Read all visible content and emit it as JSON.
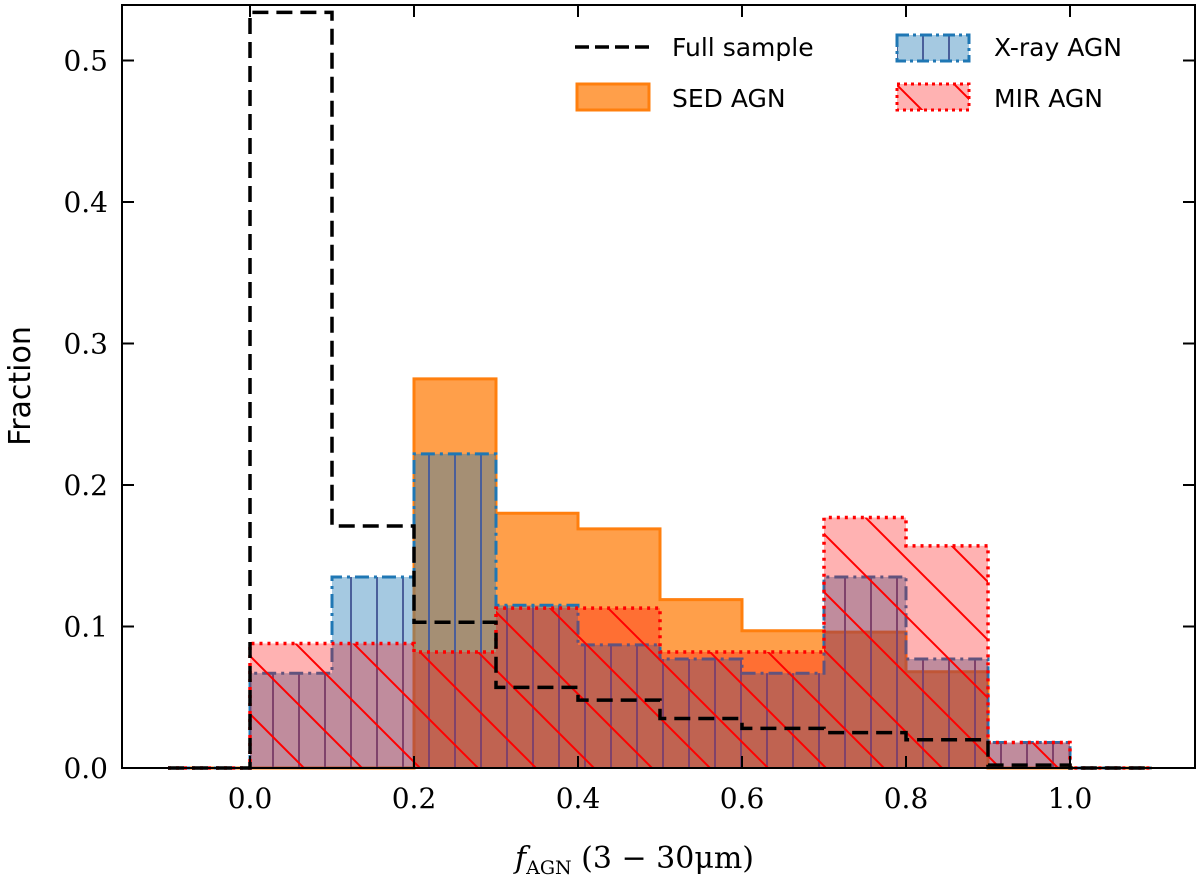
{
  "chart_data": {
    "type": "histogram-step",
    "xlabel": "f_AGN (3 − 30μm)",
    "xlabel_main": "f",
    "xlabel_sub": "AGN",
    "xlabel_rest": " (3 − 30μm)",
    "ylabel": "Fraction",
    "xlim": [
      -0.2,
      1.15
    ],
    "ylim": [
      0,
      0.54
    ],
    "bin_edges": [
      -0.1,
      0.0,
      0.1,
      0.2,
      0.3,
      0.4,
      0.5,
      0.6,
      0.7,
      0.8,
      0.9,
      1.0,
      1.1
    ],
    "x_ticks": [
      "0.0",
      "0.2",
      "0.4",
      "0.6",
      "0.8",
      "1.0"
    ],
    "y_ticks": [
      "0.0",
      "0.1",
      "0.2",
      "0.3",
      "0.4",
      "0.5"
    ],
    "legend_position": "top-right",
    "grid": false,
    "series": [
      {
        "name": "SED AGN",
        "style": "filled",
        "color": "#ff7f0e",
        "values": [
          0,
          0,
          0,
          0.275,
          0.18,
          0.169,
          0.119,
          0.097,
          0.096,
          0.068,
          0,
          0
        ]
      },
      {
        "name": "X-ray AGN",
        "style": "filled-hatch-vertical-dashdot",
        "color": "#1f77b4",
        "values": [
          0,
          0.067,
          0.135,
          0.222,
          0.115,
          0.087,
          0.077,
          0.067,
          0.135,
          0.077,
          0.018,
          0
        ]
      },
      {
        "name": "MIR AGN",
        "style": "filled-hatch-diagonal-dotted",
        "color": "#ff0000",
        "values": [
          0,
          0.088,
          0.088,
          0.082,
          0.113,
          0.113,
          0.082,
          0.082,
          0.177,
          0.157,
          0.018,
          0
        ]
      },
      {
        "name": "Full sample",
        "style": "dashed-step",
        "color": "#000000",
        "values": [
          0,
          0.534,
          0.171,
          0.103,
          0.057,
          0.048,
          0.035,
          0.028,
          0.025,
          0.02,
          0.002,
          0
        ]
      }
    ]
  }
}
